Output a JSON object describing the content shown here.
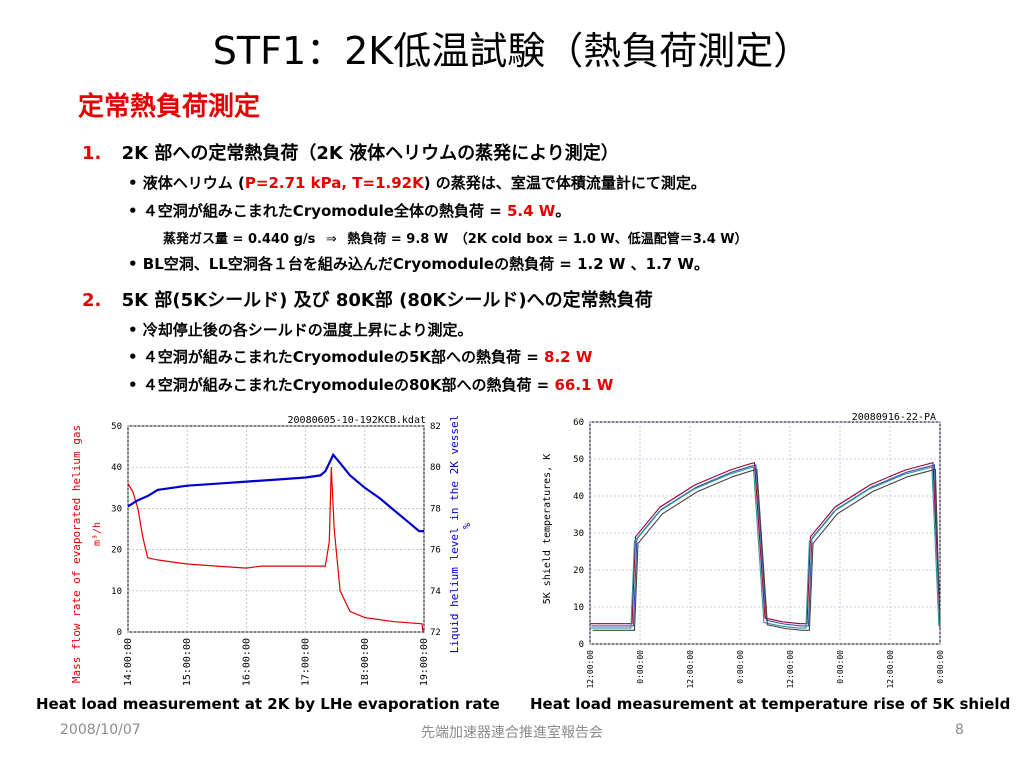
{
  "slide": {
    "title": "STF1：2K低温試験（熱負荷測定）",
    "heading": "定常熱負荷測定",
    "item1": {
      "num": "1.",
      "text": "2K 部への定常熱負荷（2K 液体ヘリウムの蒸発により測定）",
      "b1_pre": "• 液体ヘリウム (",
      "b1_red": "P=2.71 kPa, T=1.92K",
      "b1_post": ") の蒸発は、室温で体積流量計にて測定。",
      "b2_pre": "•  ４空洞が組みこまれたCryomodule全体の熱負荷 = ",
      "b2_red": "5.4 W",
      "b2_post": "。",
      "sub_left": "蒸発ガス量 = 0.440 g/s",
      "sub_arrow": "⇒",
      "sub_right": "熱負荷 = 9.8 W　（2K cold box = 1.0 W、低温配管＝3.4 W）",
      "b3": "•  BL空洞、LL空洞各１台を組み込んだCryomoduleの熱負荷 = 1.2 W 、1.7 W。"
    },
    "item2": {
      "num": "2.",
      "text": "5K 部(5Kシールド) 及び 80K部 (80Kシールド)への定常熱負荷",
      "b1": "•  冷却停止後の各シールドの温度上昇により測定。",
      "b2_pre": "• ４空洞が組みこまれたCryomoduleの5K部への熱負荷 = ",
      "b2_red": "8.2 W",
      "b3_pre": "• ４空洞が組みこまれたCryomoduleの80K部への熱負荷 = ",
      "b3_red": "66.1 W"
    }
  },
  "chart_data": [
    {
      "type": "line",
      "title": "20080605-10-192KCB.kdat",
      "ylabel": "Mass flow rate of evaporated helium gas",
      "ylabel_unit": "m³/h",
      "y2label": "Liquid helium level in the 2K vessel",
      "y2label_unit": "%",
      "xlim": [
        "14:00:00",
        "19:00:00"
      ],
      "ylim": [
        0,
        50
      ],
      "y2lim": [
        72,
        82
      ],
      "x_ticks": [
        "14:00:00",
        "15:00:00",
        "16:00:00",
        "17:00:00",
        "18:00:00",
        "19:00:00"
      ],
      "y_ticks": [
        0,
        10,
        20,
        30,
        40,
        50
      ],
      "y2_ticks": [
        72,
        74,
        76,
        78,
        80,
        82
      ],
      "grid": true,
      "series": [
        {
          "axis": "left",
          "color": "#e00000",
          "x": [
            "14:00:00",
            "14:05:00",
            "14:10:00",
            "14:15:00",
            "14:20:00",
            "14:30:00",
            "14:45:00",
            "15:00:00",
            "15:30:00",
            "16:00:00",
            "16:15:00",
            "16:30:00",
            "17:00:00",
            "17:20:00",
            "17:24:00",
            "17:26:00",
            "17:29:00",
            "17:35:00",
            "17:45:00",
            "18:00:00",
            "18:30:00",
            "18:58:00",
            "18:59:00"
          ],
          "values": [
            36,
            34,
            30,
            23,
            18,
            17.5,
            17,
            16.5,
            16,
            15.5,
            16,
            16,
            16,
            16,
            22,
            40,
            25,
            10,
            5,
            3.5,
            2.5,
            2,
            0
          ]
        },
        {
          "axis": "right",
          "color": "#0000cc",
          "x": [
            "14:00:00",
            "14:10:00",
            "14:20:00",
            "14:30:00",
            "15:00:00",
            "15:30:00",
            "16:00:00",
            "16:30:00",
            "17:00:00",
            "17:15:00",
            "17:20:00",
            "17:25:00",
            "17:28:00",
            "17:35:00",
            "17:45:00",
            "18:00:00",
            "18:15:00",
            "18:30:00",
            "18:45:00",
            "18:55:00",
            "19:00:00"
          ],
          "values": [
            78.1,
            78.4,
            78.6,
            78.9,
            79.1,
            79.2,
            79.3,
            79.4,
            79.5,
            79.6,
            79.8,
            80.3,
            80.6,
            80.2,
            79.6,
            79.0,
            78.5,
            77.9,
            77.3,
            76.9,
            76.9
          ]
        }
      ]
    },
    {
      "type": "line",
      "title": "20080916-22-PA",
      "ylabel": "5K shield temperatures, K",
      "ylim": [
        0,
        60
      ],
      "y_ticks": [
        0,
        10,
        20,
        30,
        40,
        50,
        60
      ],
      "x_ticks": [
        "12:00:00",
        "0:00:00",
        "12:00:00",
        "0:00:00",
        "12:00:00",
        "0:00:00",
        "12:00:00",
        "0:00:00"
      ],
      "grid": true,
      "series": [
        {
          "name_hidden": true,
          "color": "#990033",
          "x": [
            0,
            0.12,
            0.13,
            0.2,
            0.3,
            0.4,
            0.45,
            0.47,
            0.5,
            0.55,
            0.6,
            0.62,
            0.63,
            0.7,
            0.8,
            0.9,
            0.96,
            0.98,
            1.0
          ],
          "values": [
            5.5,
            5.5,
            29,
            37,
            43,
            47,
            48.5,
            49,
            7,
            6,
            5.5,
            5.5,
            29,
            37,
            43,
            47,
            48.5,
            49,
            6
          ]
        }
      ]
    }
  ],
  "captions": {
    "left": "Heat load measurement at 2K by LHe evaporation rate",
    "right": "Heat load measurement at temperature rise of 5K shield"
  },
  "footer": {
    "date": "2008/10/07",
    "center": "先端加速器連合推進室報告会",
    "page": "8"
  }
}
